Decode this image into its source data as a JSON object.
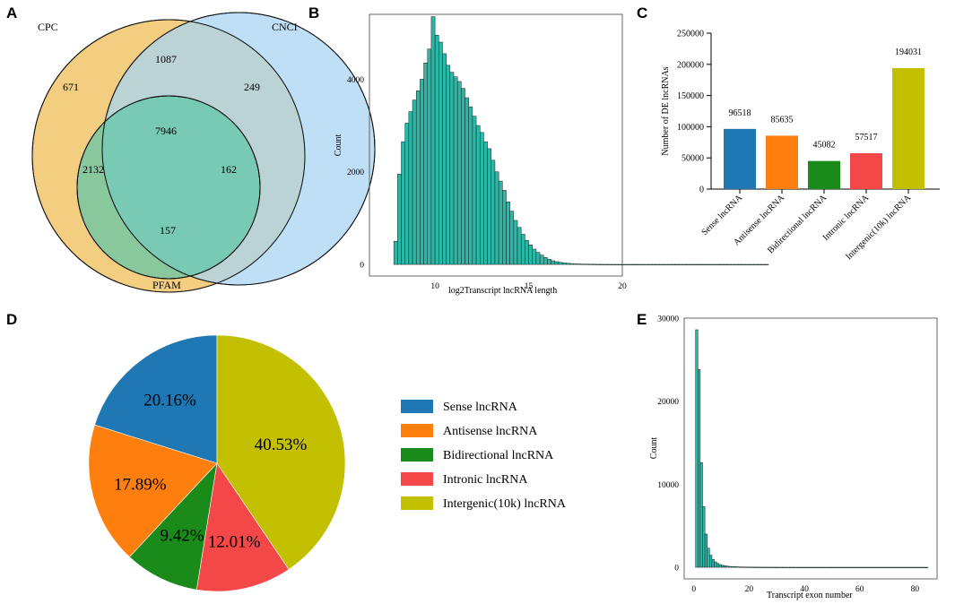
{
  "panel_letters": {
    "a": "A",
    "b": "B",
    "c": "C",
    "d": "D",
    "e": "E"
  },
  "colors": {
    "cpc": "#f1c56b",
    "cnci": "#a8d4f1",
    "pfam": "#6ccbae",
    "hist": "#2ab7a6",
    "sense": "#1f77b4",
    "antisense": "#ff7f0e",
    "bidirectional": "#1a8a1a",
    "intronic": "#f44848",
    "intergenic": "#c2c000"
  },
  "chart_data": [
    {
      "panel": "A",
      "type": "venn",
      "sets": [
        "CPC",
        "CNCI",
        "PFAM"
      ],
      "regions": {
        "cpc_only": 671,
        "cnci_only": 249,
        "pfam_only": 157,
        "cpc_cnci": 1087,
        "cpc_pfam": 2132,
        "cnci_pfam": 162,
        "all": 7946
      }
    },
    {
      "panel": "B",
      "type": "histogram",
      "title": "",
      "xlabel": "log2Transcript lncRNA length",
      "ylabel": "Count",
      "xlim": [
        6.5,
        20
      ],
      "ylim": [
        -250,
        5400
      ],
      "xticks": [
        10,
        15,
        20
      ],
      "yticks": [
        0,
        2000,
        4000
      ],
      "bin_start": 7.8,
      "bin_width": 0.2,
      "counts": [
        500,
        1950,
        2650,
        3050,
        3300,
        3550,
        3750,
        4000,
        4350,
        4650,
        5350,
        4950,
        4800,
        4550,
        4300,
        4150,
        4050,
        3950,
        3800,
        3600,
        3400,
        3200,
        3000,
        2850,
        2650,
        2500,
        2250,
        2000,
        1800,
        1600,
        1350,
        1150,
        950,
        800,
        650,
        520,
        420,
        330,
        260,
        200,
        150,
        110,
        80,
        60,
        45,
        32,
        24,
        18,
        13,
        10,
        8,
        6,
        5,
        4,
        3,
        2,
        2,
        2,
        1,
        1,
        1,
        1,
        1,
        1,
        1,
        1,
        1,
        1,
        1,
        1,
        1,
        1,
        1,
        1,
        1,
        1,
        1,
        1,
        1,
        1,
        1,
        1,
        1,
        1,
        1,
        1,
        1,
        1,
        1,
        1,
        1,
        1,
        1,
        1,
        1,
        1,
        1,
        1,
        1,
        1
      ]
    },
    {
      "panel": "C",
      "type": "bar",
      "ylabel": "Number of DE lncRNAs",
      "ylim": [
        0,
        250000
      ],
      "yticks": [
        0,
        50000,
        100000,
        150000,
        200000,
        250000
      ],
      "categories": [
        "Sense lncRNA",
        "Antisense lncRNA",
        "Bidirectional lncRNA",
        "Intronic lncRNA",
        "Intergenic(10k) lncRNA"
      ],
      "values": [
        96518,
        85635,
        45082,
        57517,
        194031
      ],
      "value_labels": [
        "96518",
        "85635",
        "45082",
        "57517",
        "194031"
      ]
    },
    {
      "panel": "D",
      "type": "pie",
      "labels": [
        "Sense lncRNA",
        "Antisense lncRNA",
        "Bidirectional lncRNA",
        "Intronic lncRNA",
        "Intergenic(10k) lncRNA"
      ],
      "values": [
        20.16,
        17.89,
        9.42,
        12.01,
        40.53
      ],
      "pct_labels": [
        "20.16%",
        "17.89%",
        "9.42%",
        "12.01%",
        "40.53%"
      ],
      "legend_position": "right"
    },
    {
      "panel": "E",
      "type": "histogram",
      "xlabel": "Transcript exon number",
      "ylabel": "Count",
      "xlim": [
        -3.5,
        88
      ],
      "ylim": [
        -1400,
        30000
      ],
      "xticks": [
        0,
        20,
        40,
        60,
        80
      ],
      "yticks": [
        0,
        10000,
        20000,
        30000
      ],
      "bin_start": 0.6,
      "bin_width": 0.85,
      "counts": [
        28600,
        23800,
        12600,
        7300,
        4000,
        2300,
        1450,
        950,
        650,
        460,
        330,
        240,
        180,
        140,
        110,
        90,
        75,
        62,
        52,
        44,
        38,
        32,
        28,
        24,
        21,
        18,
        16,
        14,
        12,
        11,
        10,
        9,
        8,
        7,
        6,
        6,
        5,
        5,
        4,
        4,
        4,
        3,
        3,
        3,
        3,
        2,
        2,
        2,
        2,
        2,
        2,
        2,
        2,
        1,
        1,
        1,
        1,
        1,
        1,
        1,
        1,
        1,
        1,
        1,
        1,
        1,
        1,
        1,
        1,
        1,
        1,
        1,
        1,
        1,
        1,
        1,
        1,
        1,
        1,
        1,
        1,
        1,
        1,
        1,
        1,
        1,
        1,
        1,
        1,
        1,
        1,
        1,
        1,
        1,
        1,
        1,
        1,
        1,
        1
      ]
    }
  ]
}
